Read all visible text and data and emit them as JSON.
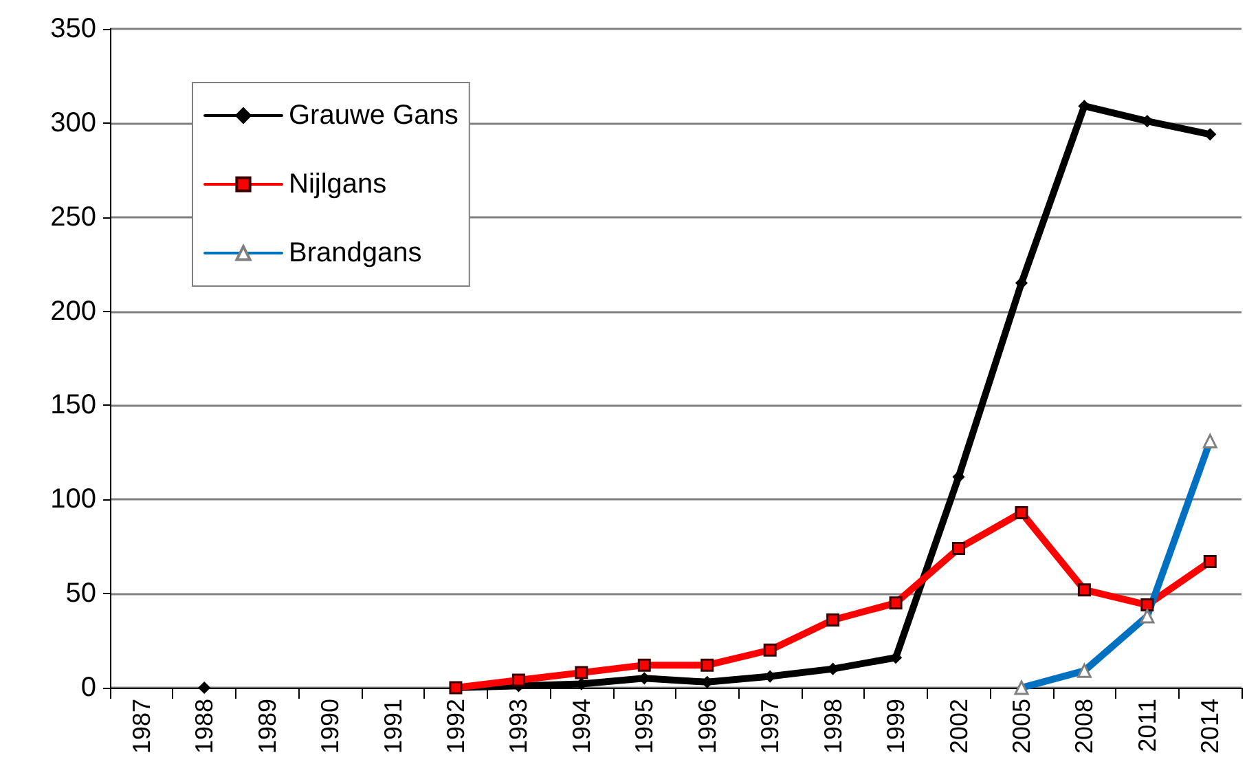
{
  "chart_data": {
    "type": "line",
    "categories": [
      "1987",
      "1988",
      "1989",
      "1990",
      "1991",
      "1992",
      "1993",
      "1994",
      "1995",
      "1996",
      "1997",
      "1998",
      "1999",
      "2002",
      "2005",
      "2008",
      "2011",
      "2014"
    ],
    "series": [
      {
        "name": "Grauwe Gans",
        "color": "#000000",
        "marker": "diamond",
        "values": [
          null,
          0,
          null,
          null,
          null,
          0,
          1,
          2,
          5,
          3,
          6,
          10,
          16,
          112,
          215,
          309,
          301,
          294
        ]
      },
      {
        "name": "Nijlgans",
        "color": "#ff0000",
        "marker": "square",
        "values": [
          null,
          null,
          null,
          null,
          null,
          0,
          4,
          8,
          12,
          12,
          20,
          36,
          45,
          74,
          93,
          52,
          44,
          67
        ]
      },
      {
        "name": "Brandgans",
        "color": "#0070c0",
        "marker": "triangle",
        "values": [
          null,
          null,
          null,
          null,
          null,
          null,
          null,
          null,
          null,
          null,
          null,
          null,
          null,
          null,
          0,
          9,
          38,
          131
        ]
      }
    ],
    "ylim": [
      0,
      350
    ],
    "yticks": [
      0,
      50,
      100,
      150,
      200,
      250,
      300,
      350
    ],
    "grid": "y",
    "legend": "top left"
  }
}
